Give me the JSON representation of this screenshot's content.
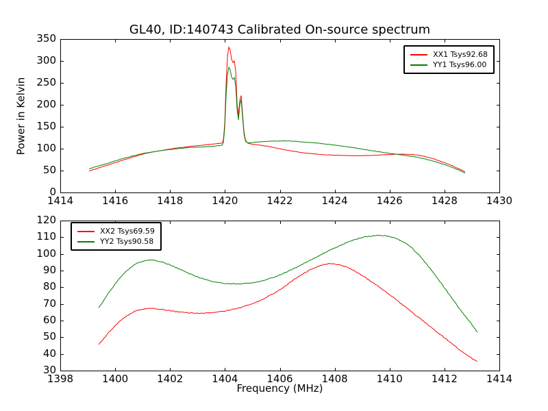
{
  "figure": {
    "title": "GL40, ID:140743 Calibrated On-source spectrum",
    "background_color": "#ffffff"
  },
  "chart_data": [
    {
      "id": "top-spectrum",
      "type": "line",
      "title": "GL40, ID:140743 Calibrated On-source spectrum",
      "xlabel": "",
      "ylabel": "Power in Kelvin",
      "xlim": [
        1414,
        1430
      ],
      "ylim": [
        0,
        350
      ],
      "x_ticks": [
        1414,
        1416,
        1418,
        1420,
        1422,
        1424,
        1426,
        1428,
        1430
      ],
      "y_ticks": [
        0,
        50,
        100,
        150,
        200,
        250,
        300,
        350
      ],
      "grid": false,
      "legend_position": "upper-right",
      "noise_amplitude": 0.8,
      "series": [
        {
          "name": "XX1 Tsys92.68",
          "color": "#ff0000",
          "x": [
            1415.05,
            1415.3,
            1415.6,
            1415.9,
            1416.2,
            1416.5,
            1416.8,
            1417.1,
            1417.4,
            1417.7,
            1418.0,
            1418.3,
            1418.6,
            1418.9,
            1419.2,
            1419.5,
            1419.8,
            1419.9,
            1419.95,
            1420.0,
            1420.05,
            1420.1,
            1420.15,
            1420.2,
            1420.25,
            1420.3,
            1420.35,
            1420.4,
            1420.45,
            1420.5,
            1420.55,
            1420.6,
            1420.65,
            1420.7,
            1420.75,
            1420.85,
            1421.0,
            1421.3,
            1421.6,
            1421.9,
            1422.2,
            1422.5,
            1422.8,
            1423.1,
            1423.4,
            1423.7,
            1424.0,
            1424.3,
            1424.6,
            1424.9,
            1425.2,
            1425.5,
            1425.8,
            1426.1,
            1426.4,
            1426.7,
            1427.0,
            1427.3,
            1427.6,
            1427.9,
            1428.2,
            1428.5,
            1428.75
          ],
          "y": [
            49,
            54,
            60,
            66,
            72,
            78,
            84,
            89,
            93,
            96,
            99,
            102,
            104,
            106,
            108,
            110,
            112,
            113,
            120,
            165,
            265,
            320,
            334,
            322,
            300,
            296,
            301,
            270,
            190,
            172,
            218,
            222,
            170,
            132,
            118,
            112,
            110,
            108,
            105,
            101,
            97,
            94,
            91,
            89,
            87,
            86,
            85,
            84.5,
            84,
            84,
            84.5,
            85,
            86,
            87,
            87.5,
            87,
            85.5,
            82,
            77,
            70,
            63,
            55,
            47
          ]
        },
        {
          "name": "YY1 Tsys96.00",
          "color": "#008000",
          "x": [
            1415.05,
            1415.3,
            1415.6,
            1415.9,
            1416.2,
            1416.5,
            1416.8,
            1417.1,
            1417.4,
            1417.7,
            1418.0,
            1418.3,
            1418.6,
            1418.9,
            1419.2,
            1419.5,
            1419.8,
            1419.9,
            1419.95,
            1420.0,
            1420.05,
            1420.1,
            1420.15,
            1420.2,
            1420.25,
            1420.3,
            1420.35,
            1420.4,
            1420.45,
            1420.5,
            1420.55,
            1420.6,
            1420.65,
            1420.7,
            1420.75,
            1420.85,
            1421.0,
            1421.3,
            1421.6,
            1421.9,
            1422.2,
            1422.5,
            1422.8,
            1423.1,
            1423.4,
            1423.7,
            1424.0,
            1424.3,
            1424.6,
            1424.9,
            1425.2,
            1425.5,
            1425.8,
            1426.1,
            1426.4,
            1426.7,
            1427.0,
            1427.3,
            1427.6,
            1427.9,
            1428.2,
            1428.5,
            1428.75
          ],
          "y": [
            54,
            59,
            64,
            70,
            76,
            81,
            86,
            90,
            93,
            96,
            98,
            100,
            102,
            103,
            104,
            105,
            107,
            108,
            114,
            155,
            235,
            275,
            288,
            278,
            260,
            258,
            263,
            240,
            180,
            163,
            207,
            214,
            162,
            128,
            116,
            113,
            114,
            116,
            117,
            117.5,
            117.5,
            117,
            115.5,
            114,
            112.5,
            110.5,
            108,
            105.5,
            103,
            100,
            97,
            94,
            91,
            88.5,
            86,
            83.5,
            80.5,
            76.5,
            71.5,
            65.5,
            59,
            52,
            44
          ]
        }
      ]
    },
    {
      "id": "bottom-spectrum",
      "type": "line",
      "title": "",
      "xlabel": "Frequency (MHz)",
      "ylabel": "",
      "xlim": [
        1398,
        1414
      ],
      "ylim": [
        30,
        120
      ],
      "x_ticks": [
        1398,
        1400,
        1402,
        1404,
        1406,
        1408,
        1410,
        1412,
        1414
      ],
      "y_ticks": [
        30,
        40,
        50,
        60,
        70,
        80,
        90,
        100,
        110,
        120
      ],
      "grid": false,
      "legend_position": "upper-left",
      "noise_amplitude": 0.5,
      "series": [
        {
          "name": "XX2 Tsys69.59",
          "color": "#ff0000",
          "x": [
            1399.4,
            1399.6,
            1399.8,
            1400.0,
            1400.2,
            1400.4,
            1400.6,
            1400.8,
            1401.0,
            1401.2,
            1401.4,
            1401.6,
            1401.8,
            1402.0,
            1402.2,
            1402.4,
            1402.6,
            1402.8,
            1403.0,
            1403.2,
            1403.4,
            1403.6,
            1403.8,
            1404.0,
            1404.2,
            1404.4,
            1404.6,
            1404.8,
            1405.0,
            1405.2,
            1405.4,
            1405.6,
            1405.8,
            1406.0,
            1406.2,
            1406.4,
            1406.6,
            1406.8,
            1407.0,
            1407.2,
            1407.4,
            1407.6,
            1407.8,
            1408.0,
            1408.2,
            1408.4,
            1408.6,
            1408.8,
            1409.0,
            1409.2,
            1409.4,
            1409.6,
            1409.8,
            1410.0,
            1410.2,
            1410.4,
            1410.6,
            1410.8,
            1411.0,
            1411.2,
            1411.4,
            1411.6,
            1411.8,
            1412.0,
            1412.2,
            1412.4,
            1412.6,
            1412.8,
            1413.0,
            1413.2
          ],
          "y": [
            45.5,
            49.5,
            53.5,
            57.0,
            60.0,
            62.5,
            64.5,
            66.0,
            66.8,
            67.3,
            67.2,
            66.9,
            66.4,
            65.9,
            65.4,
            65.0,
            64.7,
            64.5,
            64.4,
            64.4,
            64.6,
            64.9,
            65.3,
            65.8,
            66.4,
            67.1,
            68.0,
            69.0,
            70.2,
            71.5,
            73.0,
            74.7,
            76.5,
            78.5,
            80.7,
            83.2,
            85.5,
            87.6,
            89.5,
            91.2,
            92.6,
            93.6,
            94.1,
            94.0,
            93.4,
            92.3,
            90.8,
            89.0,
            87.0,
            84.9,
            82.7,
            80.4,
            78.0,
            75.5,
            73.0,
            70.4,
            67.8,
            65.2,
            62.6,
            60.0,
            57.4,
            54.8,
            52.2,
            49.6,
            47.0,
            44.4,
            41.9,
            39.5,
            37.3,
            35.5
          ]
        },
        {
          "name": "YY2 Tsys90.58",
          "color": "#008000",
          "x": [
            1399.4,
            1399.6,
            1399.8,
            1400.0,
            1400.2,
            1400.4,
            1400.6,
            1400.8,
            1401.0,
            1401.2,
            1401.4,
            1401.6,
            1401.8,
            1402.0,
            1402.2,
            1402.4,
            1402.6,
            1402.8,
            1403.0,
            1403.2,
            1403.4,
            1403.6,
            1403.8,
            1404.0,
            1404.2,
            1404.4,
            1404.6,
            1404.8,
            1405.0,
            1405.2,
            1405.4,
            1405.6,
            1405.8,
            1406.0,
            1406.2,
            1406.4,
            1406.6,
            1406.8,
            1407.0,
            1407.2,
            1407.4,
            1407.6,
            1407.8,
            1408.0,
            1408.2,
            1408.4,
            1408.6,
            1408.8,
            1409.0,
            1409.2,
            1409.4,
            1409.6,
            1409.8,
            1410.0,
            1410.2,
            1410.4,
            1410.6,
            1410.8,
            1411.0,
            1411.2,
            1411.4,
            1411.6,
            1411.8,
            1412.0,
            1412.2,
            1412.4,
            1412.6,
            1412.8,
            1413.0,
            1413.2
          ],
          "y": [
            67.5,
            72.5,
            77.5,
            82.0,
            86.0,
            89.5,
            92.3,
            94.3,
            95.6,
            96.3,
            96.2,
            95.6,
            94.6,
            93.3,
            91.9,
            90.4,
            88.9,
            87.5,
            86.2,
            85.1,
            84.1,
            83.3,
            82.7,
            82.3,
            82.1,
            82.0,
            82.1,
            82.3,
            82.7,
            83.3,
            84.1,
            85.0,
            86.1,
            87.4,
            88.8,
            90.3,
            91.9,
            93.6,
            95.3,
            97.0,
            98.7,
            100.4,
            102.0,
            103.6,
            105.1,
            106.5,
            107.8,
            108.9,
            109.8,
            110.5,
            110.9,
            111.1,
            111.0,
            110.4,
            109.4,
            108.0,
            106.1,
            103.8,
            100.5,
            96.8,
            92.8,
            88.6,
            84.2,
            79.6,
            75.0,
            70.4,
            66.0,
            61.8,
            57.6,
            53.0
          ]
        }
      ]
    }
  ]
}
